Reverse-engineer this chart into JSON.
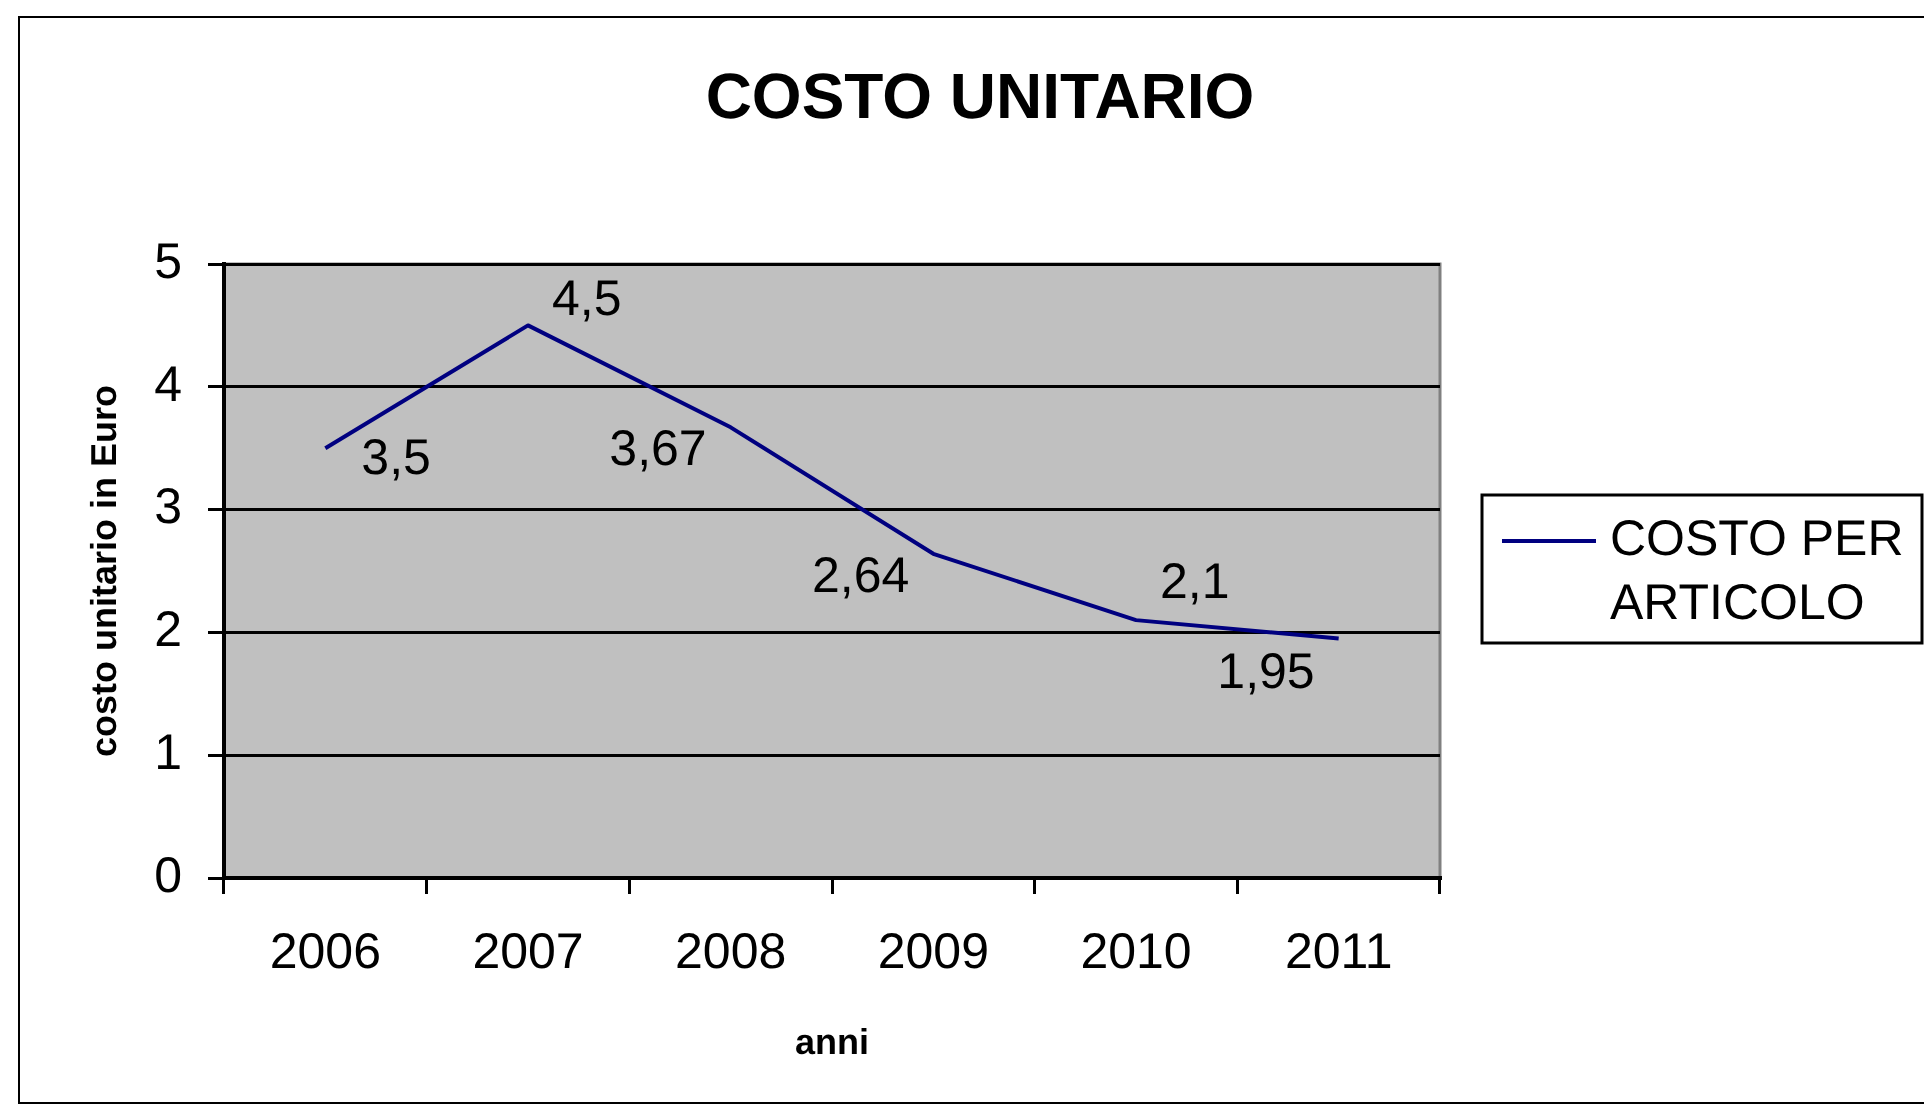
{
  "chart_data": {
    "type": "line",
    "title": "COSTO UNITARIO",
    "xlabel": "anni",
    "ylabel": "costo unitario in Euro",
    "categories": [
      "2006",
      "2007",
      "2008",
      "2009",
      "2010",
      "2011"
    ],
    "series": [
      {
        "name": "COSTO PER ARTICOLO",
        "color": "#000080",
        "values": [
          3.5,
          4.5,
          3.67,
          2.64,
          2.1,
          1.95
        ],
        "value_labels": [
          "3,5",
          "4,5",
          "3,67",
          "2,64",
          "2,1",
          "1,95"
        ]
      }
    ],
    "ylim": [
      0,
      5
    ],
    "yticks": [
      0,
      1,
      2,
      3,
      4,
      5
    ],
    "grid": "y",
    "legend": "right"
  }
}
